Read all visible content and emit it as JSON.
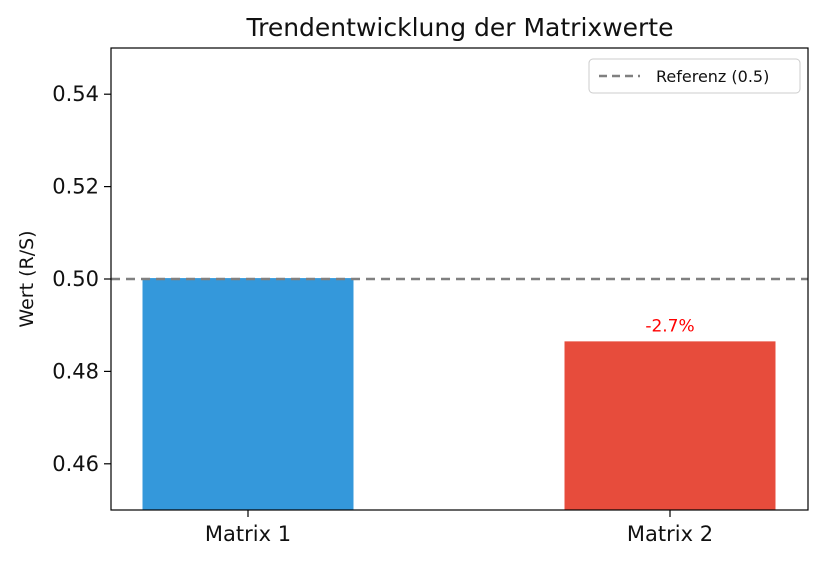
{
  "chart_data": {
    "type": "bar",
    "title": "Trendentwicklung der Matrixwerte",
    "xlabel": "",
    "ylabel": "Wert (R/S)",
    "categories": [
      "Matrix 1",
      "Matrix 2"
    ],
    "values": [
      0.5002,
      0.4865
    ],
    "bar_colors": [
      "#3498db",
      "#e74c3c"
    ],
    "ylim": [
      0.45,
      0.55
    ],
    "yticks": [
      0.46,
      0.48,
      0.5,
      0.52,
      0.54
    ],
    "ytick_labels": [
      "0.46",
      "0.48",
      "0.50",
      "0.52",
      "0.54"
    ],
    "reference_line": {
      "label": "Referenz (0.5)",
      "value": 0.5,
      "color": "#808080",
      "style": "dashed"
    },
    "annotations": [
      {
        "category": "Matrix 2",
        "text": "-2.7%",
        "color": "#ff0000"
      }
    ],
    "legend": {
      "position": "top-right",
      "entries": [
        "Referenz (0.5)"
      ]
    },
    "grid": false
  }
}
